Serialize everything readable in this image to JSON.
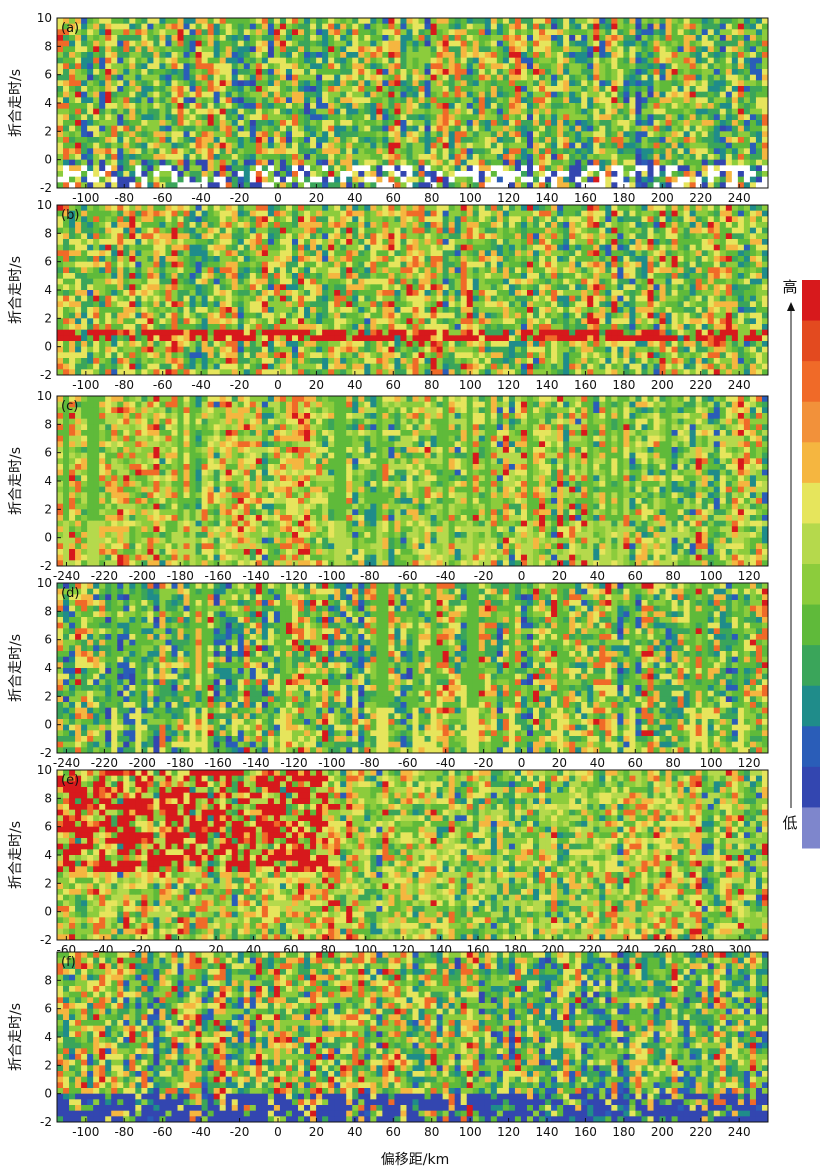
{
  "figure": {
    "xlabel": "偏移距/km",
    "colorbar": {
      "high_label": "高",
      "low_label": "低",
      "colors": [
        "#d7191c",
        "#e34a1f",
        "#f06a28",
        "#f2913a",
        "#f5b640",
        "#e6e55c",
        "#b5d94c",
        "#8ccc3c",
        "#5fba3a",
        "#3aa55a",
        "#1f8c8a",
        "#2a5db8",
        "#3346b0",
        "#7e86cc"
      ]
    }
  },
  "chart_data": [
    {
      "type": "heatmap",
      "panel_label": "(a)",
      "ylabel": "折合走时/s",
      "xlim": [
        -115,
        255
      ],
      "ylim": [
        -2,
        10
      ],
      "xticks": [
        -100,
        -80,
        -60,
        -40,
        -20,
        0,
        20,
        40,
        60,
        80,
        100,
        120,
        140,
        160,
        180,
        200,
        220,
        240
      ],
      "yticks": [
        -2,
        0,
        2,
        4,
        6,
        8,
        10
      ],
      "palette": [
        "#d7191c",
        "#f06a28",
        "#f5b640",
        "#e6e55c",
        "#8ccc3c",
        "#5fba3a",
        "#3aa55a",
        "#1f8c8a",
        "#2a5db8",
        "#3346b0",
        "#ffffff"
      ],
      "bias": 0.55,
      "amp_top": 0.8,
      "white_bottom": true,
      "low_blue_band": 0.25,
      "seed": 11
    },
    {
      "type": "heatmap",
      "panel_label": "(b)",
      "ylabel": "折合走时/s",
      "xlim": [
        -115,
        255
      ],
      "ylim": [
        -2,
        10
      ],
      "xticks": [
        -100,
        -80,
        -60,
        -40,
        -20,
        0,
        20,
        40,
        60,
        80,
        100,
        120,
        140,
        160,
        180,
        200,
        220,
        240
      ],
      "yticks": [
        -2,
        0,
        2,
        4,
        6,
        8,
        10
      ],
      "palette": [
        "#d7191c",
        "#f06a28",
        "#f5b640",
        "#e6e55c",
        "#8ccc3c",
        "#5fba3a",
        "#3aa55a",
        "#1f8c8a",
        "#2a5db8",
        "#3346b0"
      ],
      "bias": 0.45,
      "red_band_y": 1.0,
      "seed": 23
    },
    {
      "type": "heatmap",
      "panel_label": "(c)",
      "ylabel": "折合走时/s",
      "xlim": [
        -245,
        130
      ],
      "ylim": [
        -2,
        10
      ],
      "xticks": [
        -240,
        -220,
        -200,
        -180,
        -160,
        -140,
        -120,
        -100,
        -80,
        -60,
        -40,
        -20,
        0,
        20,
        40,
        60,
        80,
        100,
        120
      ],
      "yticks": [
        -2,
        0,
        2,
        4,
        6,
        8,
        10
      ],
      "palette": [
        "#d7191c",
        "#f06a28",
        "#f5b640",
        "#e6e55c",
        "#b5d94c",
        "#8ccc3c",
        "#5fba3a",
        "#3aa55a",
        "#1f8c8a",
        "#2a5db8",
        "#ffffff"
      ],
      "bias": 0.5,
      "strips": true,
      "seed": 37
    },
    {
      "type": "heatmap",
      "panel_label": "(d)",
      "ylabel": "折合走时/s",
      "xlim": [
        -245,
        130
      ],
      "ylim": [
        -2,
        10
      ],
      "xticks": [
        -240,
        -220,
        -200,
        -180,
        -160,
        -140,
        -120,
        -100,
        -80,
        -60,
        -40,
        -20,
        0,
        20,
        40,
        60,
        80,
        100,
        120
      ],
      "yticks": [
        -2,
        0,
        2,
        4,
        6,
        8,
        10
      ],
      "palette": [
        "#d7191c",
        "#f06a28",
        "#f5b640",
        "#e6e55c",
        "#8ccc3c",
        "#5fba3a",
        "#3aa55a",
        "#1f8c8a",
        "#2a5db8",
        "#3346b0",
        "#7e86cc"
      ],
      "bias": 0.5,
      "strips": true,
      "seed": 41
    },
    {
      "type": "heatmap",
      "panel_label": "(e)",
      "ylabel": "折合走时/s",
      "xlim": [
        -65,
        315
      ],
      "ylim": [
        -2,
        10
      ],
      "xticks": [
        -60,
        -40,
        -20,
        0,
        20,
        40,
        60,
        80,
        100,
        120,
        140,
        160,
        180,
        200,
        220,
        240,
        260,
        280,
        300
      ],
      "yticks": [
        -2,
        0,
        2,
        4,
        6,
        8,
        10
      ],
      "palette": [
        "#d7191c",
        "#f06a28",
        "#f5b640",
        "#e6e55c",
        "#b5d94c",
        "#8ccc3c",
        "#5fba3a",
        "#3aa55a",
        "#1f8c8a",
        "#2a5db8",
        "#ffffff"
      ],
      "bias": 0.5,
      "red_left": true,
      "seed": 53
    },
    {
      "type": "heatmap",
      "panel_label": "(f)",
      "ylabel": "折合走时/s",
      "xlim": [
        -115,
        255
      ],
      "ylim": [
        -2,
        10
      ],
      "xticks": [
        -100,
        -80,
        -60,
        -40,
        -20,
        0,
        20,
        40,
        60,
        80,
        100,
        120,
        140,
        160,
        180,
        200,
        220,
        240
      ],
      "yticks": [
        -2,
        0,
        2,
        4,
        6,
        8
      ],
      "palette": [
        "#d7191c",
        "#f06a28",
        "#f5b640",
        "#e6e55c",
        "#8ccc3c",
        "#5fba3a",
        "#3aa55a",
        "#1f8c8a",
        "#2a5db8",
        "#3346b0",
        "#7e86cc"
      ],
      "bias": 0.4,
      "low_blue_band": 0.6,
      "seed": 67
    }
  ]
}
